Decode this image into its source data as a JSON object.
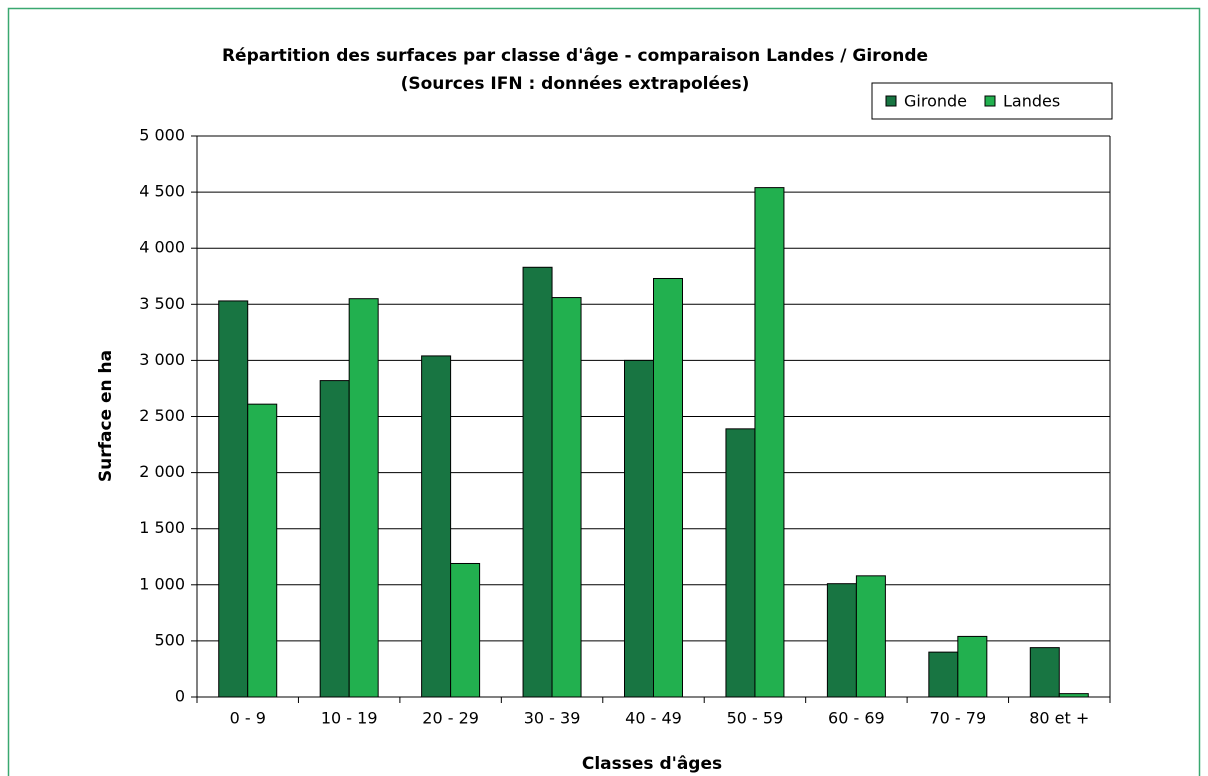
{
  "chart_data": {
    "type": "bar",
    "title": "Répartition des surfaces par classe d'âge - comparaison Landes / Gironde",
    "subtitle": "(Sources IFN : données extrapolées)",
    "x_label": "Classes d'âges",
    "y_label": "Surface en ha",
    "categories": [
      "0 - 9",
      "10 - 19",
      "20 - 29",
      "30 - 39",
      "40 - 49",
      "50 - 59",
      "60 - 69",
      "70 - 79",
      "80 et +"
    ],
    "series": [
      {
        "name": "Gironde",
        "color": "#187542",
        "values": [
          3530,
          2820,
          3040,
          3830,
          3000,
          2390,
          1010,
          400,
          440
        ]
      },
      {
        "name": "Landes",
        "color": "#22b04f",
        "values": [
          2610,
          3550,
          1190,
          3560,
          3730,
          4540,
          1080,
          540,
          30
        ]
      }
    ],
    "ylim": [
      0,
      5000
    ],
    "yticks": [
      0,
      500,
      {
        "value": 1000,
        "label": "1 000"
      },
      {
        "value": 1500,
        "label": "1 500"
      },
      {
        "value": 2000,
        "label": "2 000"
      },
      {
        "value": 2500,
        "label": "2 500"
      },
      {
        "value": 3000,
        "label": "3 000"
      },
      {
        "value": 3500,
        "label": "3 500"
      },
      {
        "value": 4000,
        "label": "4 000"
      },
      {
        "value": 4500,
        "label": "4 500"
      },
      {
        "value": 5000,
        "label": "5 000"
      }
    ],
    "grid": true,
    "legend": "top-right"
  }
}
